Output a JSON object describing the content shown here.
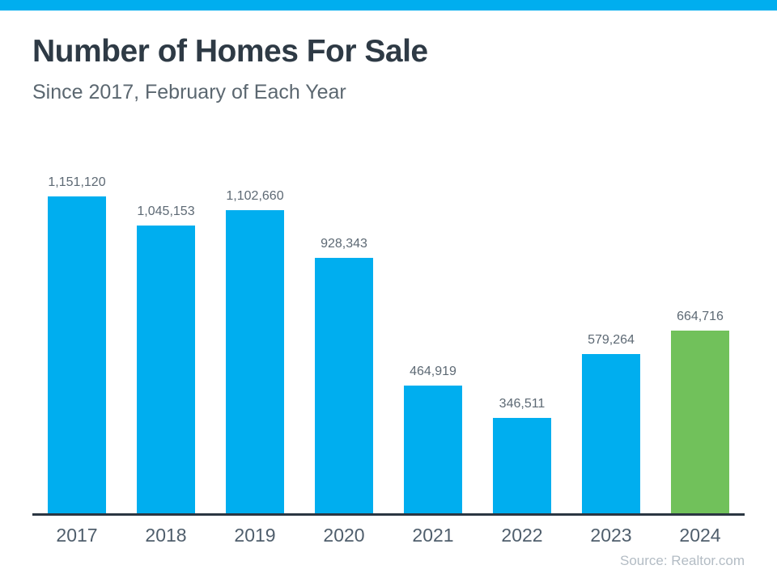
{
  "header": {
    "title": "Number of Homes For Sale",
    "subtitle": "Since 2017, February of Each Year"
  },
  "footer": {
    "source": "Source: Realtor.com"
  },
  "colors": {
    "accent_strip": "#00AEEF",
    "title_text": "#2E3A45",
    "subtitle_text": "#5B6770",
    "value_label_text": "#5D6974",
    "year_label_text": "#4F5E6C",
    "axis_line": "#2B3642",
    "source_text": "#B3BCC4",
    "bar": "#00AEEF",
    "highlight_bar": "#71C15B"
  },
  "chart_data": {
    "type": "bar",
    "title": "Number of Homes For Sale",
    "subtitle": "Since 2017, February of Each Year",
    "categories": [
      "2017",
      "2018",
      "2019",
      "2020",
      "2021",
      "2022",
      "2023",
      "2024"
    ],
    "values": [
      1151120,
      1045153,
      1102660,
      928343,
      464919,
      346511,
      579264,
      664716
    ],
    "value_labels": [
      "1,151,120",
      "1,045,153",
      "1,102,660",
      "928,343",
      "464,919",
      "346,511",
      "579,264",
      "664,716"
    ],
    "xlabel": "",
    "ylabel": "",
    "ylim": [
      0,
      1151120
    ],
    "grid": false,
    "legend": null,
    "bar_color": "#00AEEF",
    "highlight_color": "#71C15B",
    "highlight_index": 7,
    "source": "Source: Realtor.com"
  }
}
